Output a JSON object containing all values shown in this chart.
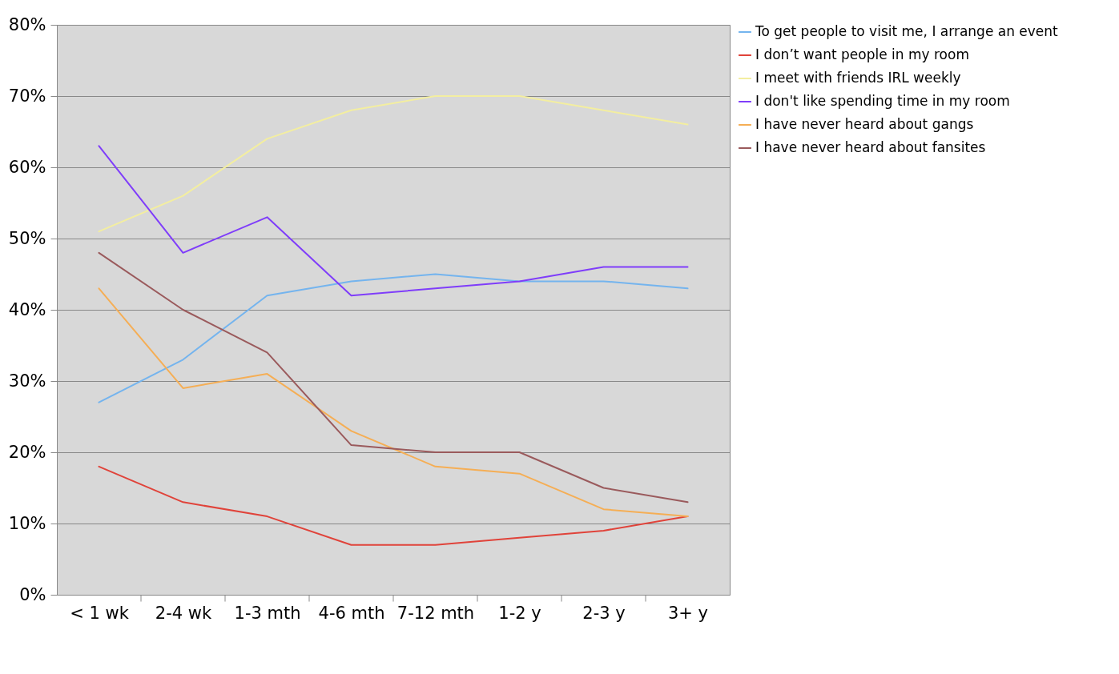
{
  "chart_data": {
    "type": "line",
    "categories": [
      "< 1 wk",
      "2-4 wk",
      "1-3 mth",
      "4-6 mth",
      "7-12 mth",
      "1-2 y",
      "2-3 y",
      "3+ y"
    ],
    "series": [
      {
        "name": "To get people to visit me, I arrange an event",
        "color": "#74b4ee",
        "values": [
          27,
          33,
          42,
          44,
          45,
          44,
          44,
          43
        ]
      },
      {
        "name": "I don’t want people in my room",
        "color": "#e0433a",
        "values": [
          18,
          13,
          11,
          7,
          7,
          8,
          9,
          11
        ]
      },
      {
        "name": "I meet with friends IRL weekly",
        "color": "#f3eea0",
        "values": [
          51,
          56,
          64,
          68,
          70,
          70,
          68,
          66
        ]
      },
      {
        "name": "I don't like spending time in my room",
        "color": "#7f3dfa",
        "values": [
          63,
          48,
          53,
          42,
          43,
          44,
          46,
          46
        ]
      },
      {
        "name": "I have never heard about gangs",
        "color": "#f5ae55",
        "values": [
          43,
          29,
          31,
          23,
          18,
          17,
          12,
          11
        ]
      },
      {
        "name": "I have never heard about fansites",
        "color": "#9a5a5c",
        "values": [
          48,
          40,
          34,
          21,
          20,
          20,
          15,
          13
        ]
      }
    ],
    "ylim": [
      0,
      80
    ],
    "yticks": [
      {
        "value": 0,
        "label": "0%"
      },
      {
        "value": 10,
        "label": "10%"
      },
      {
        "value": 20,
        "label": "20%"
      },
      {
        "value": 30,
        "label": "30%"
      },
      {
        "value": 40,
        "label": "40%"
      },
      {
        "value": 50,
        "label": "50%"
      },
      {
        "value": 60,
        "label": "60%"
      },
      {
        "value": 70,
        "label": "70%"
      },
      {
        "value": 80,
        "label": "80%"
      }
    ],
    "grid": "y",
    "legend": "right",
    "marker": "none",
    "line_style": "solid"
  }
}
